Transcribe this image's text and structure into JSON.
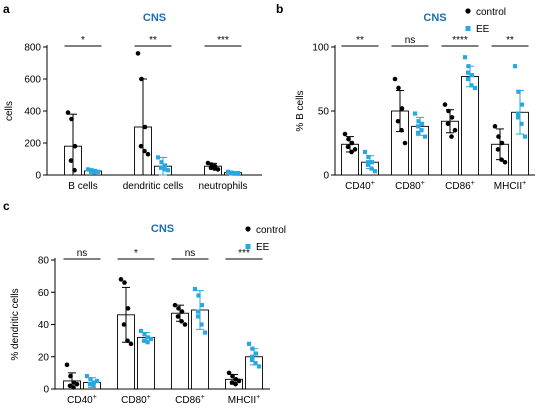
{
  "colors": {
    "control": "#000000",
    "ee": "#29a8e0",
    "title": "#1a6fb3"
  },
  "legend": {
    "control": "control",
    "ee": "EE"
  },
  "chart_data": [
    {
      "id": "a",
      "letter": "a",
      "type": "bar",
      "title": "CNS",
      "ylabel": "cells",
      "ylim": [
        0,
        800
      ],
      "yticks": [
        0,
        200,
        400,
        600,
        800
      ],
      "categories": [
        "B cells",
        "dendritic cells",
        "neutrophils"
      ],
      "cat_sup": [
        "",
        "",
        ""
      ],
      "significance": [
        "*",
        "**",
        "***"
      ],
      "legend_shown": false,
      "series": [
        {
          "name": "control",
          "key": "control",
          "values": [
            180,
            300,
            55
          ],
          "sd": [
            200,
            300,
            18
          ],
          "points": [
            [
              390,
              350,
              180,
              90,
              30
            ],
            [
              760,
              600,
              300,
              180,
              150,
              130
            ],
            [
              75,
              65,
              55,
              45,
              40,
              35
            ]
          ]
        },
        {
          "name": "EE",
          "key": "ee",
          "values": [
            25,
            55,
            15
          ],
          "sd": [
            10,
            55,
            5
          ],
          "points": [
            [
              35,
              30,
              25,
              20,
              15,
              20
            ],
            [
              110,
              80,
              60,
              45,
              35,
              30
            ],
            [
              20,
              15,
              12,
              10,
              8,
              12
            ]
          ]
        }
      ]
    },
    {
      "id": "b",
      "letter": "b",
      "type": "bar",
      "title": "CNS",
      "ylabel": "% B cells",
      "ylim": [
        0,
        100
      ],
      "yticks": [
        0,
        50,
        100
      ],
      "categories": [
        "CD40",
        "CD80",
        "CD86",
        "MHCII"
      ],
      "cat_sup": [
        "+",
        "+",
        "+",
        "+"
      ],
      "significance": [
        "**",
        "ns",
        "****",
        "**"
      ],
      "legend_shown": true,
      "series": [
        {
          "name": "control",
          "key": "control",
          "values": [
            24,
            50,
            42,
            24
          ],
          "sd": [
            6,
            16,
            9,
            12
          ],
          "points": [
            [
              32,
              28,
              25,
              22,
              18,
              20
            ],
            [
              75,
              68,
              52,
              42,
              35,
              25
            ],
            [
              55,
              50,
              45,
              40,
              30,
              35
            ],
            [
              38,
              30,
              25,
              20,
              12,
              10
            ]
          ]
        },
        {
          "name": "EE",
          "key": "ee",
          "values": [
            10,
            38,
            77,
            49
          ],
          "sd": [
            5,
            7,
            8,
            17
          ],
          "points": [
            [
              18,
              14,
              10,
              8,
              5,
              3,
              10
            ],
            [
              48,
              42,
              40,
              38,
              35,
              30,
              33
            ],
            [
              92,
              85,
              78,
              75,
              70,
              68,
              80
            ],
            [
              85,
              65,
              55,
              48,
              40,
              30,
              45
            ]
          ]
        }
      ]
    },
    {
      "id": "c",
      "letter": "c",
      "type": "bar",
      "title": "CNS",
      "ylabel": "% dendritic cells",
      "ylim": [
        0,
        80
      ],
      "yticks": [
        0,
        20,
        40,
        60,
        80
      ],
      "categories": [
        "CD40",
        "CD80",
        "CD86",
        "MHCII"
      ],
      "cat_sup": [
        "+",
        "+",
        "+",
        "+"
      ],
      "significance": [
        "ns",
        "*",
        "ns",
        "***"
      ],
      "legend_shown": true,
      "series": [
        {
          "name": "control",
          "key": "control",
          "values": [
            5,
            46,
            47,
            6
          ],
          "sd": [
            5,
            17,
            5,
            3
          ],
          "points": [
            [
              15,
              8,
              4,
              2,
              1,
              3
            ],
            [
              68,
              66,
              50,
              40,
              30,
              28
            ],
            [
              52,
              50,
              48,
              45,
              42,
              40
            ],
            [
              10,
              8,
              6,
              4,
              3,
              5
            ]
          ]
        },
        {
          "name": "EE",
          "key": "ee",
          "values": [
            4,
            32,
            49,
            20
          ],
          "sd": [
            3,
            3,
            12,
            5
          ],
          "points": [
            [
              8,
              6,
              4,
              3,
              2,
              5,
              3
            ],
            [
              36,
              34,
              32,
              30,
              29,
              31
            ],
            [
              62,
              58,
              52,
              48,
              40,
              35,
              45
            ],
            [
              28,
              25,
              22,
              20,
              16,
              14,
              18
            ]
          ]
        }
      ]
    }
  ]
}
